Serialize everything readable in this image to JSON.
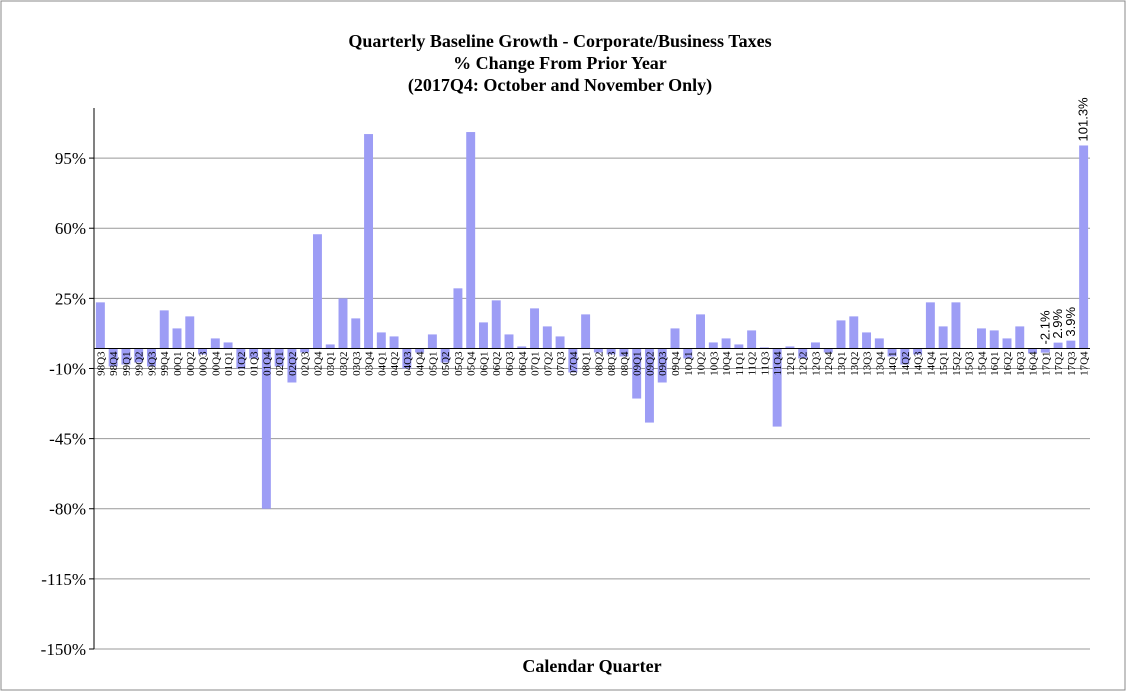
{
  "chart_data": {
    "type": "bar",
    "title_lines": [
      "Quarterly Baseline Growth - Corporate/Business Taxes",
      "% Change From Prior Year",
      "(2017Q4: October and November Only)"
    ],
    "x_label": "Calendar Quarter",
    "categories": [
      "98Q3",
      "98Q4",
      "99Q1",
      "99Q2",
      "99Q3",
      "99Q4",
      "00Q1",
      "00Q2",
      "00Q3",
      "00Q4",
      "01Q1",
      "01Q2",
      "01Q3",
      "01Q4",
      "02Q1",
      "02Q2",
      "02Q3",
      "02Q4",
      "03Q1",
      "03Q2",
      "03Q3",
      "03Q4",
      "04Q1",
      "04Q2",
      "04Q3",
      "04Q4",
      "05Q1",
      "05Q2",
      "05Q3",
      "05Q4",
      "06Q1",
      "06Q2",
      "06Q3",
      "06Q4",
      "07Q1",
      "07Q2",
      "07Q3",
      "07Q4",
      "08Q1",
      "08Q2",
      "08Q3",
      "08Q4",
      "09Q1",
      "09Q2",
      "09Q3",
      "09Q4",
      "10Q1",
      "10Q2",
      "10Q3",
      "10Q4",
      "11Q1",
      "11Q2",
      "11Q3",
      "11Q4",
      "12Q1",
      "12Q2",
      "12Q3",
      "12Q4",
      "13Q1",
      "13Q2",
      "13Q3",
      "13Q4",
      "14Q1",
      "14Q2",
      "14Q3",
      "14Q4",
      "15Q1",
      "15Q2",
      "15Q3",
      "15Q4",
      "16Q1",
      "16Q2",
      "16Q3",
      "16Q4",
      "17Q1",
      "17Q2",
      "17Q3",
      "17Q4"
    ],
    "values": [
      23,
      -9,
      -8,
      -7,
      -9,
      19,
      10,
      16,
      -3,
      5,
      3,
      -10,
      -5,
      -80,
      -9,
      -17,
      -2,
      57,
      2,
      25,
      15,
      107,
      8,
      6,
      -10,
      -2,
      7,
      -7,
      30,
      108,
      13,
      24,
      7,
      1,
      20,
      11,
      6,
      -12,
      17,
      -2,
      -3,
      -4,
      -25,
      -37,
      -17,
      10,
      -5,
      17,
      3,
      5,
      2,
      9,
      0.5,
      -39,
      1,
      -5,
      3,
      -2,
      14,
      16,
      8,
      5,
      -4,
      -8,
      -3,
      23,
      11,
      23,
      0,
      10,
      9,
      5,
      11,
      -2.5,
      -2.1,
      2.9,
      3.9,
      101.3
    ],
    "value_labels": [
      null,
      null,
      null,
      null,
      null,
      null,
      null,
      null,
      null,
      null,
      null,
      null,
      null,
      null,
      null,
      null,
      null,
      null,
      null,
      null,
      null,
      null,
      null,
      null,
      null,
      null,
      null,
      null,
      null,
      null,
      null,
      null,
      null,
      null,
      null,
      null,
      null,
      null,
      null,
      null,
      null,
      null,
      null,
      null,
      null,
      null,
      null,
      null,
      null,
      null,
      null,
      null,
      null,
      null,
      null,
      null,
      null,
      null,
      null,
      null,
      null,
      null,
      null,
      null,
      null,
      null,
      null,
      null,
      null,
      null,
      null,
      null,
      null,
      null,
      "-2.1%",
      "2.9%",
      "3.9%",
      "101.3%"
    ],
    "color": "#9d9df5",
    "ylim": [
      -150,
      120
    ],
    "yticks": [
      {
        "value": -150,
        "label": "-150%"
      },
      {
        "value": -115,
        "label": "-115%"
      },
      {
        "value": -80,
        "label": "-80%"
      },
      {
        "value": -45,
        "label": "-45%"
      },
      {
        "value": -10,
        "label": "-10%"
      },
      {
        "value": 25,
        "label": "25%"
      },
      {
        "value": 60,
        "label": "60%"
      },
      {
        "value": 95,
        "label": "95%"
      }
    ],
    "grid": true
  }
}
